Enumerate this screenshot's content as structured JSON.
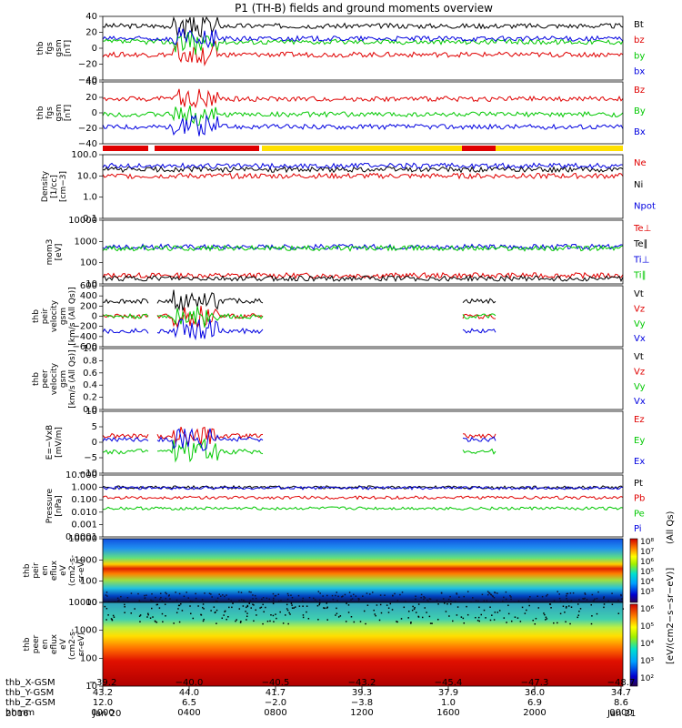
{
  "title": "P1 (TH-B) fields and ground moments overview",
  "chart_data": {
    "type": "line",
    "title": "P1 (TH-B) fields and ground moments overview",
    "panels": [
      {
        "id": "fgs",
        "ylabel": [
          "thb",
          "fgs",
          "gsm",
          "[nT]"
        ],
        "ylim": [
          -40,
          40
        ],
        "yticks": [
          "40",
          "20",
          "0",
          "−20",
          "−40"
        ],
        "series": [
          {
            "name": "Bt",
            "color": "#000000",
            "level": 28
          },
          {
            "name": "bz",
            "color": "#e00000",
            "level": -8
          },
          {
            "name": "by",
            "color": "#00c800",
            "level": 8
          },
          {
            "name": "bx",
            "color": "#0000e0",
            "level": 12
          }
        ]
      },
      {
        "id": "fgs2",
        "ylabel": [
          "thb",
          "fgs",
          "gsm",
          "[nT]"
        ],
        "ylim": [
          -40,
          40
        ],
        "yticks": [
          "40",
          "20",
          "0",
          "−20",
          "−40"
        ],
        "series": [
          {
            "name": "Bz",
            "color": "#e00000",
            "level": 18
          },
          {
            "name": "By",
            "color": "#00c800",
            "level": -2
          },
          {
            "name": "Bx",
            "color": "#0000e0",
            "level": -18
          }
        ]
      },
      {
        "id": "density",
        "ylabel": [
          "Density",
          "[1/cc]",
          "[cm−3]"
        ],
        "ylim": [
          0.1,
          100
        ],
        "log": true,
        "yticks": [
          "100.0",
          "10.0",
          "1.0",
          "0.1"
        ],
        "series": [
          {
            "name": "Ne",
            "color": "#e00000",
            "level": 10
          },
          {
            "name": "Ni",
            "color": "#000000",
            "level": 20
          },
          {
            "name": "Npot",
            "color": "#0000e0",
            "level": 30
          }
        ]
      },
      {
        "id": "temp",
        "ylabel": [
          "mom3",
          "[eV]"
        ],
        "ylim": [
          10,
          10000
        ],
        "log": true,
        "yticks": [
          "10000",
          "1000",
          "100",
          "10"
        ],
        "series": [
          {
            "name": "Te⊥",
            "color": "#e00000",
            "level": 25
          },
          {
            "name": "Te∥",
            "color": "#000000",
            "level": 18
          },
          {
            "name": "Ti⊥",
            "color": "#0000e0",
            "level": 550
          },
          {
            "name": "Ti∥",
            "color": "#00c800",
            "level": 480
          }
        ]
      },
      {
        "id": "peir_vel",
        "ylabel": [
          "thb",
          "peir",
          "velocity",
          "gsm",
          "[km/s (All Qs)]"
        ],
        "ylim": [
          -600,
          600
        ],
        "yticks": [
          "600",
          "400",
          "200",
          "0",
          "−200",
          "−400",
          "−600"
        ],
        "series": [
          {
            "name": "Vt",
            "color": "#000000",
            "level": 300
          },
          {
            "name": "Vz",
            "color": "#e00000",
            "level": 0
          },
          {
            "name": "Vy",
            "color": "#00c800",
            "level": 0
          },
          {
            "name": "Vx",
            "color": "#0000e0",
            "level": -290
          }
        ]
      },
      {
        "id": "peer_vel",
        "ylabel": [
          "thb",
          "peer",
          "velocity",
          "gsm",
          "[km/s (All Qs)]"
        ],
        "ylim": [
          0,
          1
        ],
        "yticks": [
          "1.0",
          "0.8",
          "0.6",
          "0.4",
          "0.2",
          "0.0"
        ],
        "series": [
          {
            "name": "Vt",
            "color": "#000000"
          },
          {
            "name": "Vz",
            "color": "#e00000"
          },
          {
            "name": "Vy",
            "color": "#00c800"
          },
          {
            "name": "Vx",
            "color": "#0000e0"
          }
        ]
      },
      {
        "id": "efield",
        "ylabel": [
          "E=−VxB",
          "[mV/m]"
        ],
        "ylim": [
          -10,
          10
        ],
        "yticks": [
          "10",
          "5",
          "0",
          "−5",
          "−10"
        ],
        "series": [
          {
            "name": "Ez",
            "color": "#e00000",
            "level": 2
          },
          {
            "name": "Ey",
            "color": "#00c800",
            "level": -3
          },
          {
            "name": "Ex",
            "color": "#0000e0",
            "level": 1
          }
        ]
      },
      {
        "id": "pressure",
        "ylabel": [
          "Pressure",
          "[nPa]"
        ],
        "ylim": [
          0.0001,
          10
        ],
        "log": true,
        "yticks": [
          "10.000",
          "1.000",
          "0.100",
          "0.010",
          "0.001",
          "0.0001"
        ],
        "series": [
          {
            "name": "Pt",
            "color": "#000000",
            "level": 1.0
          },
          {
            "name": "Pb",
            "color": "#e00000",
            "level": 0.15
          },
          {
            "name": "Pe",
            "color": "#00c800",
            "level": 0.02
          },
          {
            "name": "Pi",
            "color": "#0000e0",
            "level": 0.9
          }
        ]
      },
      {
        "id": "peir_spec",
        "type": "heatmap",
        "ylabel": [
          "thb",
          "peir",
          "en",
          "eflux",
          "eV",
          "(cm2-s-",
          "sr-eV)"
        ],
        "yticks": [
          "10000",
          "1000",
          "100",
          "10"
        ]
      },
      {
        "id": "peer_spec",
        "type": "heatmap",
        "ylabel": [
          "thb",
          "peer",
          "en",
          "eflux",
          "eV",
          "(cm2-s-",
          "sr-eV)"
        ],
        "yticks": [
          "10000",
          "1000",
          "100",
          "10"
        ]
      }
    ],
    "colorbar": {
      "unit": "[eV/(cm2−s−sr−eV)]",
      "note": "(All Qs)",
      "labels_top": [
        "10⁸",
        "10⁷",
        "10⁶",
        "10⁵",
        "10⁴",
        "10³"
      ],
      "labels_bottom": [
        "10⁶",
        "10⁵",
        "10⁴",
        "10³",
        "10²"
      ]
    },
    "xaxis": {
      "rows": [
        {
          "label": "thb_X-GSM",
          "values": [
            "−39.2",
            "−40.0",
            "−40.5",
            "−43.2",
            "−45.4",
            "−47.3",
            "−48.7"
          ]
        },
        {
          "label": "thb_Y-GSM",
          "values": [
            "43.2",
            "44.0",
            "41.7",
            "39.3",
            "37.9",
            "36.0",
            "34.7"
          ]
        },
        {
          "label": "thb_Z-GSM",
          "values": [
            "12.0",
            "6.5",
            "−2.0",
            "−3.8",
            "1.0",
            "6.9",
            "8.6"
          ]
        },
        {
          "label": "hhmm",
          "values": [
            "0000",
            "0400",
            "0800",
            "1200",
            "1600",
            "2000",
            "0000"
          ]
        }
      ],
      "year": "2016",
      "date_start": "Jan 20",
      "date_end": "Jan 21"
    }
  }
}
